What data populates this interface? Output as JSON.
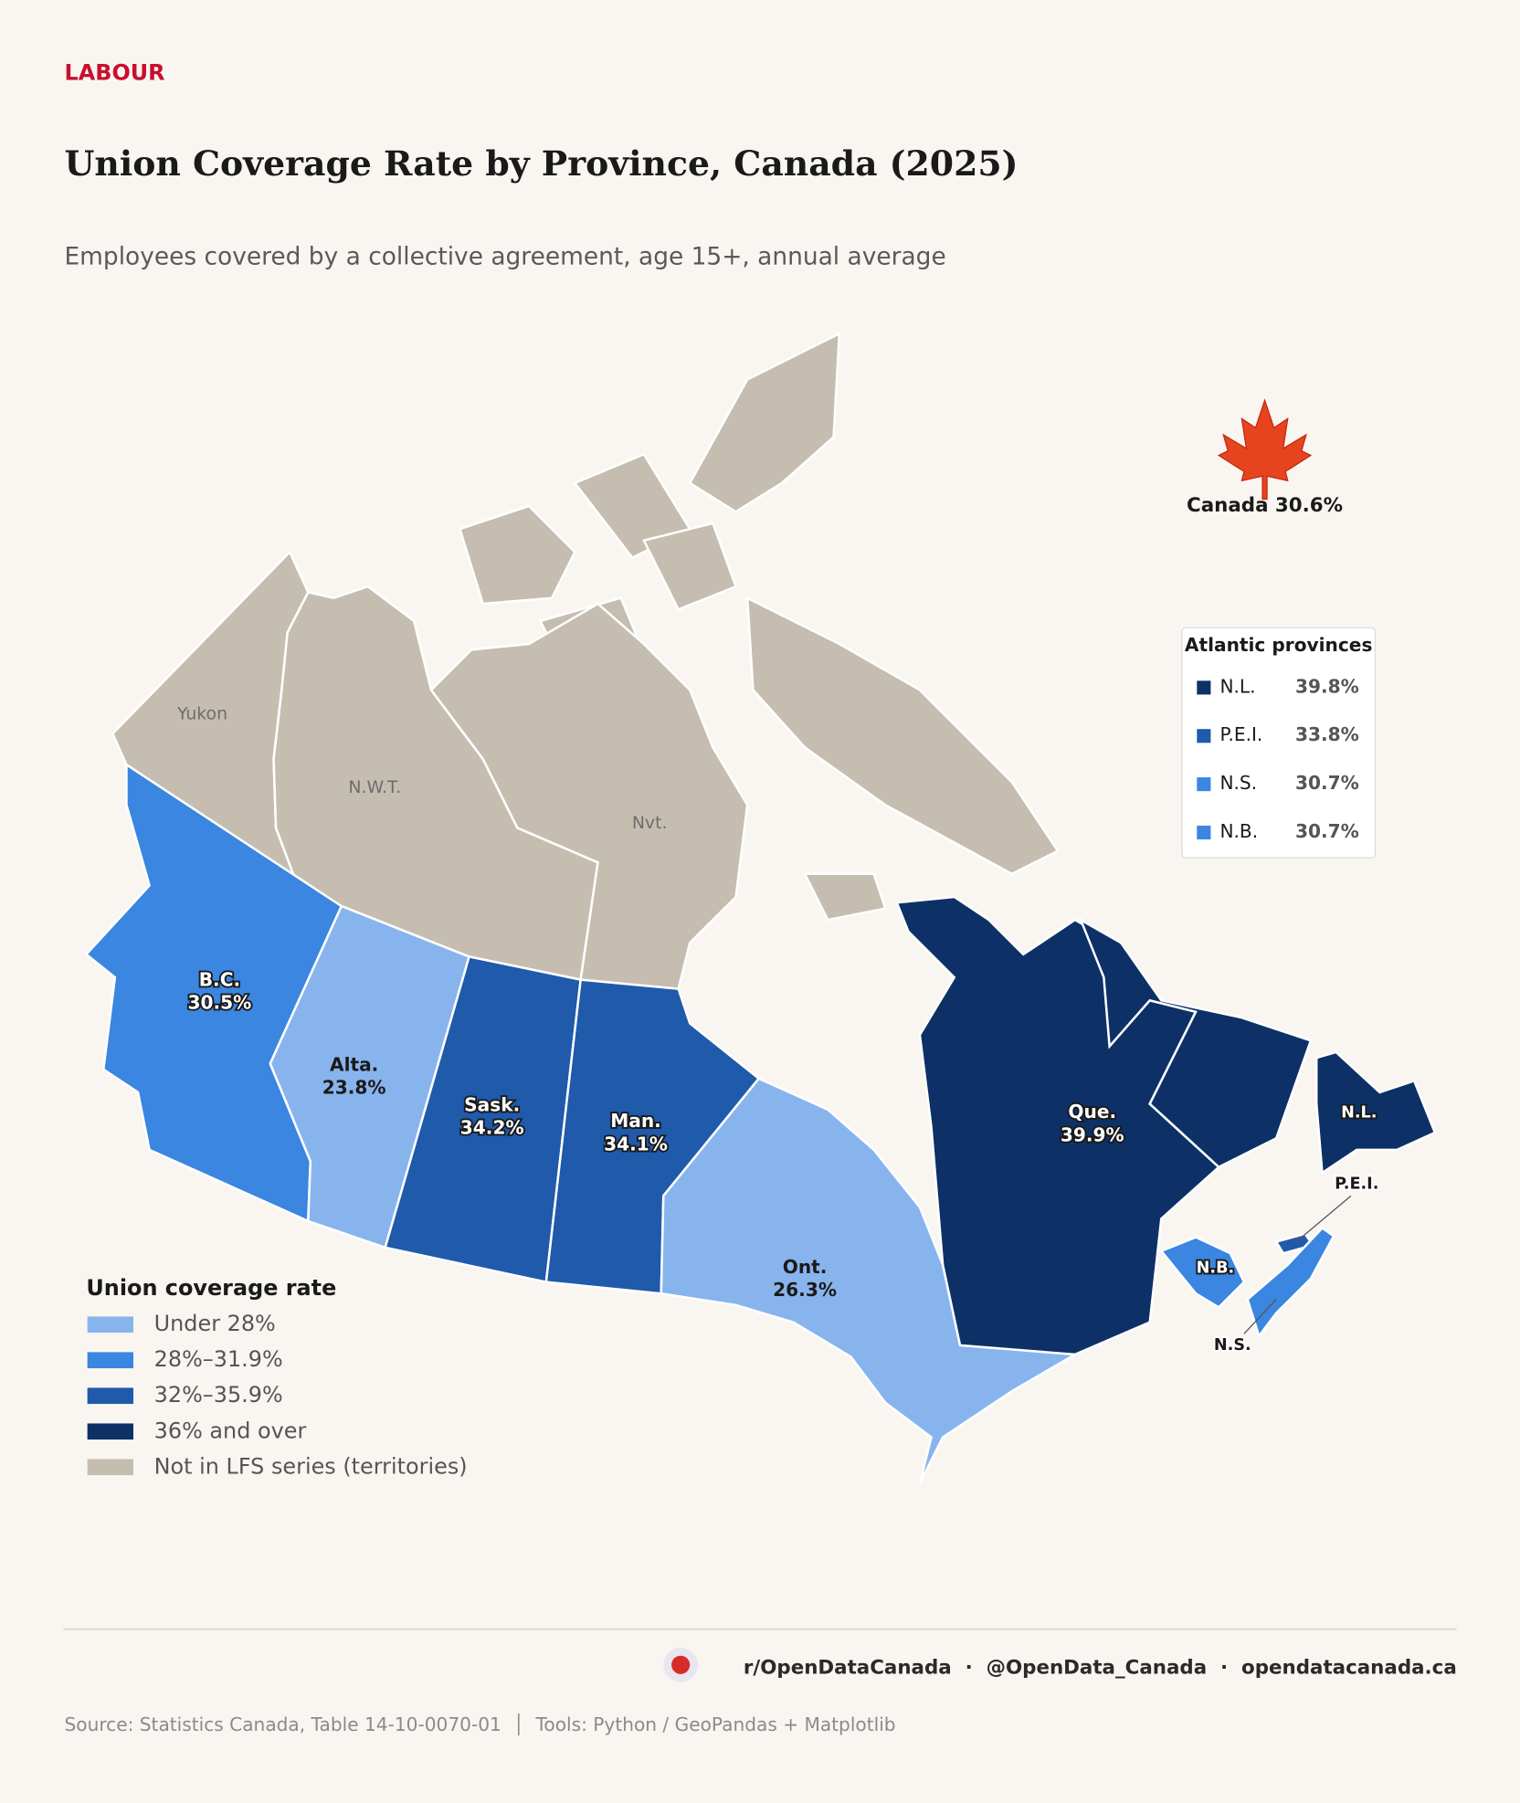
{
  "header": {
    "kicker": "LABOUR",
    "title": "Union Coverage Rate by Province, Canada (2025)",
    "subtitle": "Employees covered by a collective agreement, age 15+, annual average"
  },
  "map": {
    "regions": [
      {
        "name": "B.C.",
        "value": 30.5,
        "value_label": "30.5%",
        "color": "#3a86e0"
      },
      {
        "name": "Alta.",
        "value": 23.8,
        "value_label": "23.8%",
        "color": "#88b4ee"
      },
      {
        "name": "Sask.",
        "value": 34.2,
        "value_label": "34.2%",
        "color": "#1f5aab"
      },
      {
        "name": "Man.",
        "value": 34.1,
        "value_label": "34.1%",
        "color": "#1f5aab"
      },
      {
        "name": "Ont.",
        "value": 26.3,
        "value_label": "26.3%",
        "color": "#88b4ee"
      },
      {
        "name": "Que.",
        "value": 39.9,
        "value_label": "39.9%",
        "color": "#0d3166"
      }
    ],
    "territories": [
      {
        "name": "Yukon",
        "color": "#c5bdb0"
      },
      {
        "name": "N.W.T.",
        "color": "#c5bdb0"
      },
      {
        "name": "Nvt.",
        "color": "#c5bdb0"
      }
    ],
    "national": "Canada 30.6%",
    "atlantic": {
      "title": "Atlantic provinces",
      "provinces": [
        {
          "name": "N.L.",
          "value": 39.8,
          "value_label": "39.8%",
          "color": "#0d3166"
        },
        {
          "name": "P.E.I.",
          "value": 33.8,
          "value_label": "33.8%",
          "color": "#1f5aab"
        },
        {
          "name": "N.S.",
          "value": 30.7,
          "value_label": "30.7%",
          "color": "#3a86e0"
        },
        {
          "name": "N.B.",
          "value": 30.7,
          "value_label": "30.7%",
          "color": "#3a86e0"
        }
      ]
    }
  },
  "legend": {
    "title": "Union coverage rate",
    "items": [
      {
        "label": "Under 28%",
        "color": "#88b4ee"
      },
      {
        "label": "28%–31.9%",
        "color": "#3a86e0"
      },
      {
        "label": "32%–35.9%",
        "color": "#1f5aab"
      },
      {
        "label": "36% and over",
        "color": "#0d3166"
      },
      {
        "label": "Not in LFS series (territories)",
        "color": "#c5bdb0"
      }
    ]
  },
  "footer": {
    "handles": "r/OpenDataCanada  ·  @OpenData_Canada  ·  opendatacanada.ca",
    "source": "Source: Statistics Canada, Table 14-10-0070-01  │  Tools: Python / GeoPandas + Matplotlib"
  }
}
